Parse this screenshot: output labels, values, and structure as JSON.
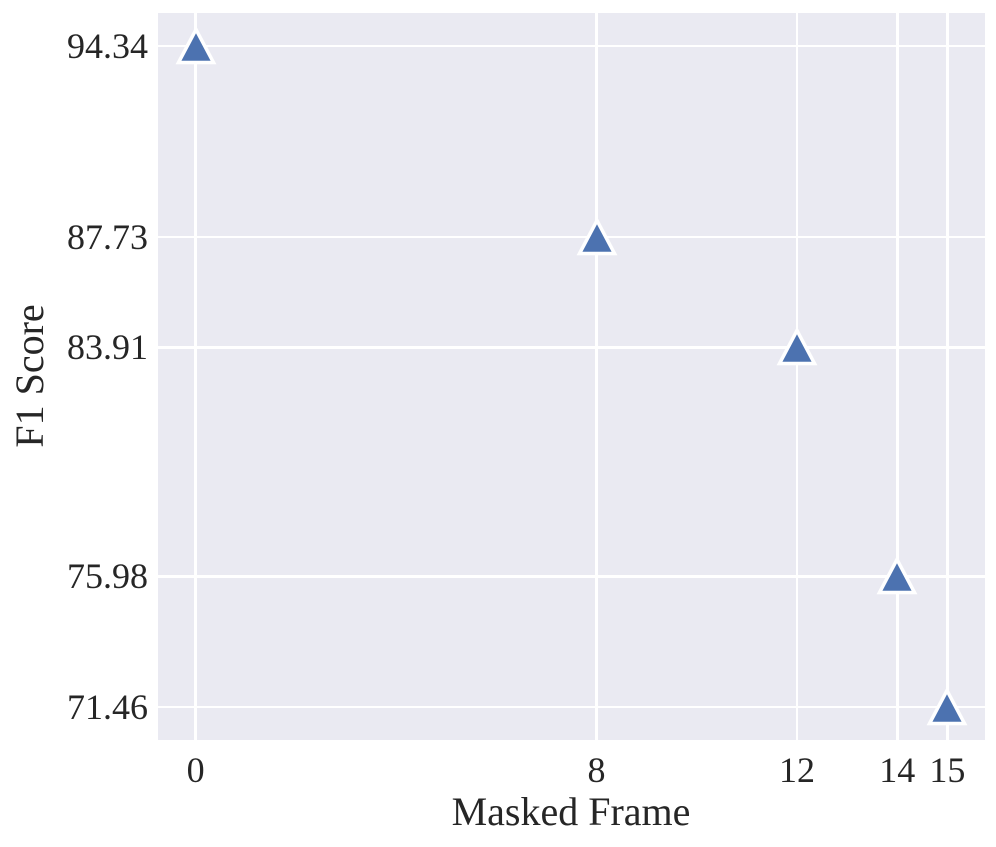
{
  "chart_data": {
    "type": "scatter",
    "title": "",
    "xlabel": "Masked Frame",
    "ylabel": "F1 Score",
    "x": [
      0,
      8,
      12,
      14,
      15
    ],
    "y": [
      94.34,
      87.73,
      83.91,
      75.98,
      71.46
    ],
    "points": [
      {
        "x": 0,
        "y": 94.34
      },
      {
        "x": 8,
        "y": 87.73
      },
      {
        "x": 12,
        "y": 83.91
      },
      {
        "x": 14,
        "y": 75.98
      },
      {
        "x": 15,
        "y": 71.46
      }
    ],
    "xticks": {
      "values": [
        0,
        8,
        12,
        14,
        15
      ],
      "labels": [
        "0",
        "8",
        "12",
        "14",
        "15"
      ]
    },
    "yticks": {
      "values": [
        94.34,
        87.73,
        83.91,
        75.98,
        71.46
      ],
      "labels": [
        "94.34",
        "87.73",
        "83.91",
        "75.98",
        "71.46"
      ]
    },
    "xlim": [
      -0.75,
      15.75
    ],
    "ylim": [
      70.32,
      95.48
    ],
    "grid": true,
    "legend": false,
    "marker": "triangle-up",
    "colors": {
      "marker_fill": "#4C72B0",
      "marker_edge": "#FFFFFF",
      "plot_background": "#EAEAF2",
      "gridline": "#FFFFFF",
      "text": "#262626",
      "figure_background": "#FFFFFF"
    }
  }
}
